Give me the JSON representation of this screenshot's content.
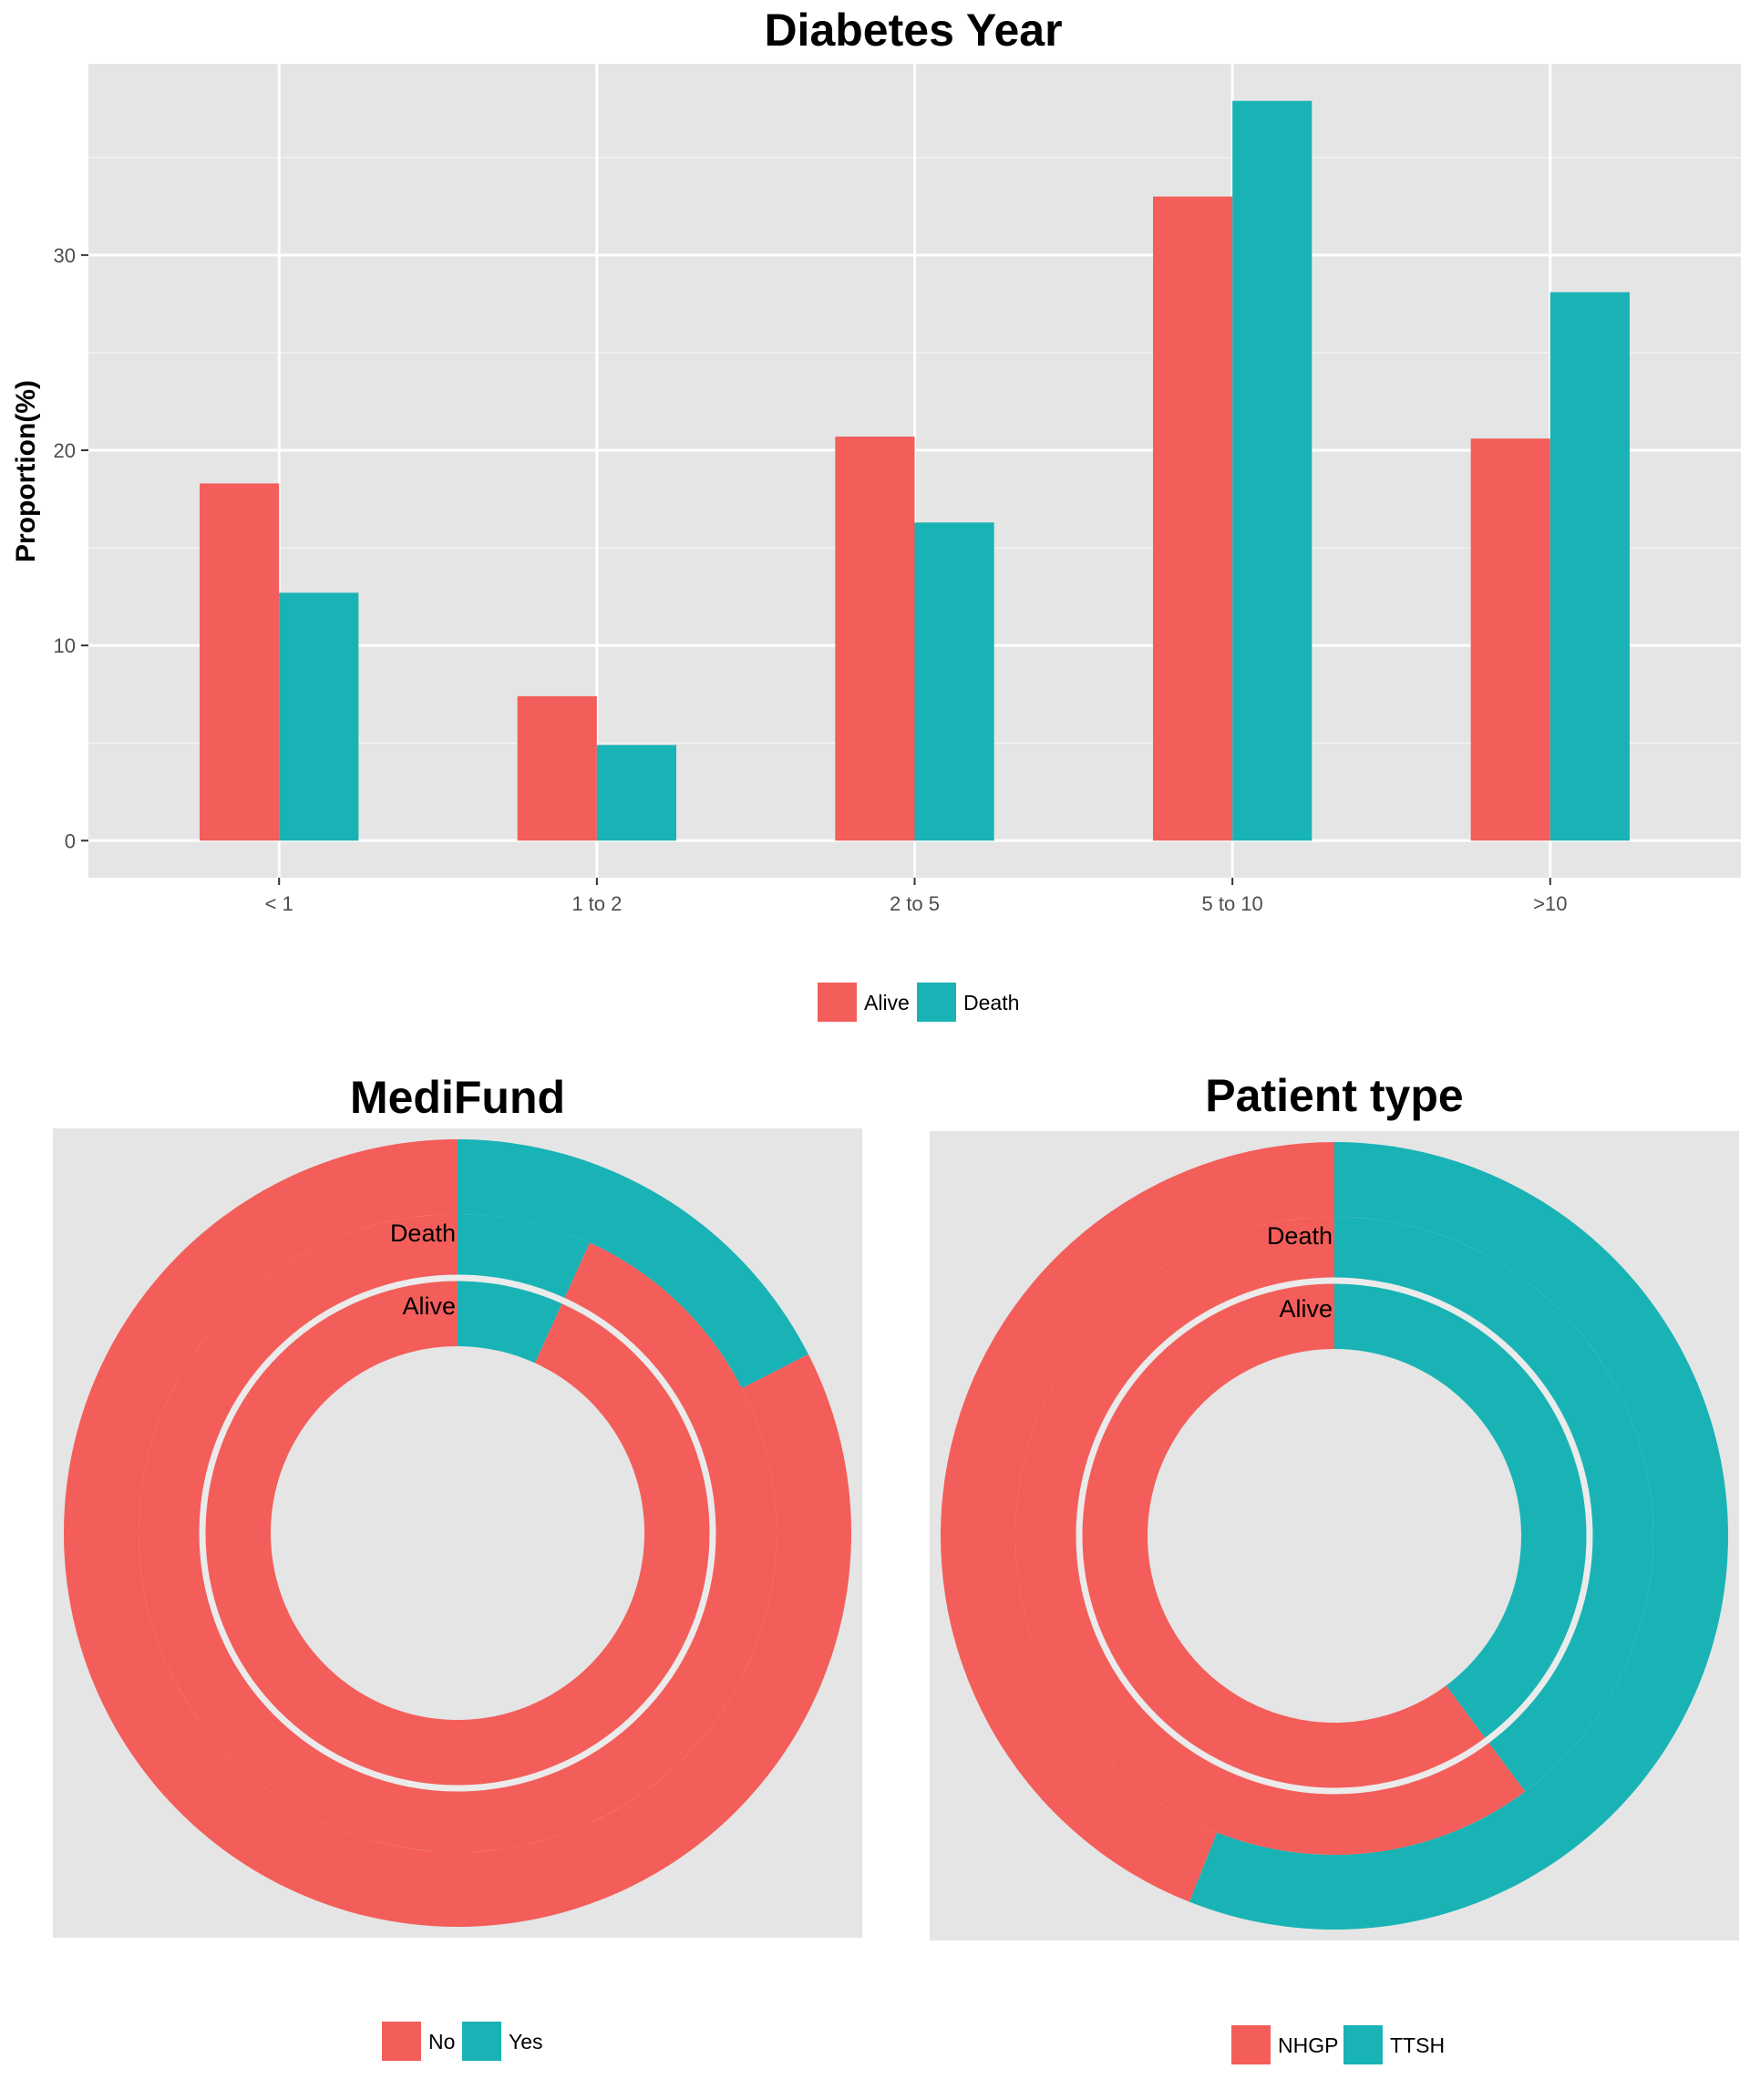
{
  "chart_data": [
    {
      "type": "bar",
      "title": "Diabetes Year",
      "ylabel": "Proportion(%)",
      "xlabel": "",
      "categories": [
        "< 1",
        "1 to 2",
        "2 to 5",
        "5 to 10",
        ">10"
      ],
      "series": [
        {
          "name": "Alive",
          "color": "#F35E5A",
          "values": [
            18.3,
            7.4,
            20.7,
            33.0,
            20.6
          ]
        },
        {
          "name": "Death",
          "color": "#19B3B5",
          "values": [
            12.7,
            4.9,
            16.3,
            37.9,
            28.1
          ]
        }
      ],
      "ylim": [
        -1.9,
        39.8
      ],
      "yticks": [
        0,
        10,
        20,
        30
      ],
      "grid": true,
      "legend": "bottom"
    },
    {
      "type": "pie",
      "title": "MediFund",
      "rings": [
        {
          "name": "Death",
          "slices": [
            {
              "label": "No",
              "value": 82.5
            },
            {
              "label": "Yes",
              "value": 17.5
            }
          ]
        },
        {
          "name": "Alive",
          "slices": [
            {
              "label": "No",
              "value": 93.2
            },
            {
              "label": "Yes",
              "value": 6.8
            }
          ]
        }
      ],
      "legend": "bottom"
    },
    {
      "type": "pie",
      "title": "Patient type",
      "rings": [
        {
          "name": "Death",
          "slices": [
            {
              "label": "NHGP",
              "value": 44.0
            },
            {
              "label": "TTSH",
              "value": 56.0
            }
          ]
        },
        {
          "name": "Alive",
          "slices": [
            {
              "label": "NHGP",
              "value": 60.2
            },
            {
              "label": "TTSH",
              "value": 39.8
            }
          ]
        }
      ],
      "legend": "bottom"
    }
  ],
  "legend_colors": {
    "first": "#F35E5A",
    "second": "#19B3B5"
  }
}
